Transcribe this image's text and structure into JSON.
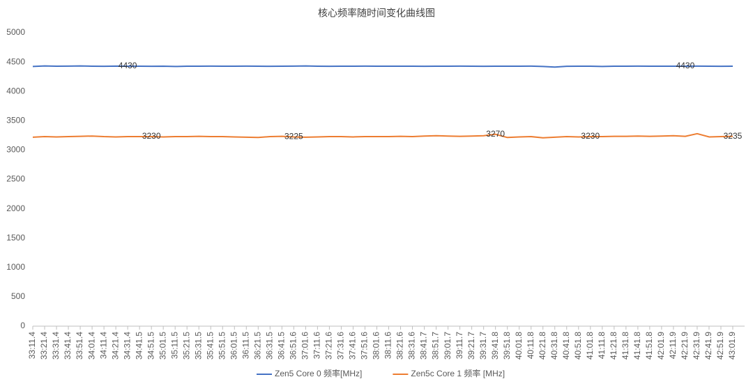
{
  "chart_data": {
    "type": "line",
    "title": "核心频率随时间变化曲线图",
    "categories": [
      "33:11.4",
      "33:21.4",
      "33:31.4",
      "33:41.4",
      "33:51.4",
      "34:01.4",
      "34:11.4",
      "34:21.4",
      "34:31.4",
      "34:41.5",
      "34:51.5",
      "35:01.5",
      "35:11.5",
      "35:21.5",
      "35:31.5",
      "35:41.5",
      "35:51.5",
      "36:01.5",
      "36:11.5",
      "36:21.5",
      "36:31.5",
      "36:41.5",
      "36:51.6",
      "37:01.6",
      "37:11.6",
      "37:21.6",
      "37:31.6",
      "37:41.6",
      "37:51.6",
      "38:01.6",
      "38:11.6",
      "38:21.6",
      "38:31.6",
      "38:41.7",
      "38:51.7",
      "39:01.7",
      "39:11.7",
      "39:21.7",
      "39:31.7",
      "39:41.8",
      "39:51.8",
      "40:01.8",
      "40:11.8",
      "40:21.8",
      "40:31.8",
      "40:41.8",
      "40:51.8",
      "41:01.8",
      "41:11.8",
      "41:21.8",
      "41:31.8",
      "41:41.8",
      "41:51.8",
      "42:01.9",
      "42:11.9",
      "42:21.9",
      "42:31.9",
      "42:41.9",
      "42:51.9",
      "43:01.9"
    ],
    "series": [
      {
        "name": "Zen5 Core 0 频率[MHz]",
        "color": "#4472c4",
        "values": [
          4425,
          4435,
          4430,
          4432,
          4435,
          4430,
          4428,
          4432,
          4430,
          4430,
          4428,
          4430,
          4425,
          4430,
          4430,
          4432,
          4430,
          4430,
          4432,
          4430,
          4428,
          4430,
          4432,
          4435,
          4430,
          4428,
          4430,
          4430,
          4432,
          4430,
          4430,
          4430,
          4430,
          4428,
          4430,
          4430,
          4432,
          4430,
          4428,
          4430,
          4430,
          4430,
          4432,
          4425,
          4415,
          4428,
          4430,
          4430,
          4425,
          4430,
          4430,
          4432,
          4430,
          4430,
          4430,
          4430,
          4432,
          4430,
          4428,
          4430
        ],
        "value_labels": [
          null,
          null,
          null,
          null,
          null,
          null,
          null,
          null,
          "4430",
          null,
          null,
          null,
          null,
          null,
          null,
          null,
          null,
          null,
          null,
          null,
          null,
          null,
          null,
          null,
          null,
          null,
          null,
          null,
          null,
          null,
          null,
          null,
          null,
          null,
          null,
          null,
          null,
          null,
          null,
          null,
          null,
          null,
          null,
          null,
          null,
          null,
          null,
          null,
          null,
          null,
          null,
          null,
          null,
          null,
          null,
          "4430",
          null,
          null,
          null,
          null
        ]
      },
      {
        "name": "Zen5c Core 1 频率 [MHz]",
        "color": "#ed7d31",
        "values": [
          3220,
          3230,
          3225,
          3230,
          3235,
          3240,
          3230,
          3225,
          3230,
          3230,
          3230,
          3225,
          3230,
          3230,
          3235,
          3230,
          3230,
          3225,
          3220,
          3215,
          3230,
          3235,
          3225,
          3220,
          3225,
          3230,
          3230,
          3225,
          3230,
          3230,
          3230,
          3235,
          3230,
          3240,
          3245,
          3240,
          3235,
          3240,
          3245,
          3270,
          3215,
          3225,
          3230,
          3210,
          3220,
          3230,
          3225,
          3230,
          3230,
          3235,
          3235,
          3240,
          3235,
          3240,
          3245,
          3235,
          3280,
          3225,
          3230,
          3235
        ],
        "value_labels": [
          null,
          null,
          null,
          null,
          null,
          null,
          null,
          null,
          null,
          null,
          "3230",
          null,
          null,
          null,
          null,
          null,
          null,
          null,
          null,
          null,
          null,
          null,
          "3225",
          null,
          null,
          null,
          null,
          null,
          null,
          null,
          null,
          null,
          null,
          null,
          null,
          null,
          null,
          null,
          null,
          "3270",
          null,
          null,
          null,
          null,
          null,
          null,
          null,
          "3230",
          null,
          null,
          null,
          null,
          null,
          null,
          null,
          null,
          null,
          null,
          null,
          "3235"
        ]
      }
    ],
    "ylim": [
      0,
      5000
    ],
    "yticks": [
      0,
      500,
      1000,
      1500,
      2000,
      2500,
      3000,
      3500,
      4000,
      4500,
      5000
    ],
    "grid": false,
    "legend": "bottom"
  }
}
